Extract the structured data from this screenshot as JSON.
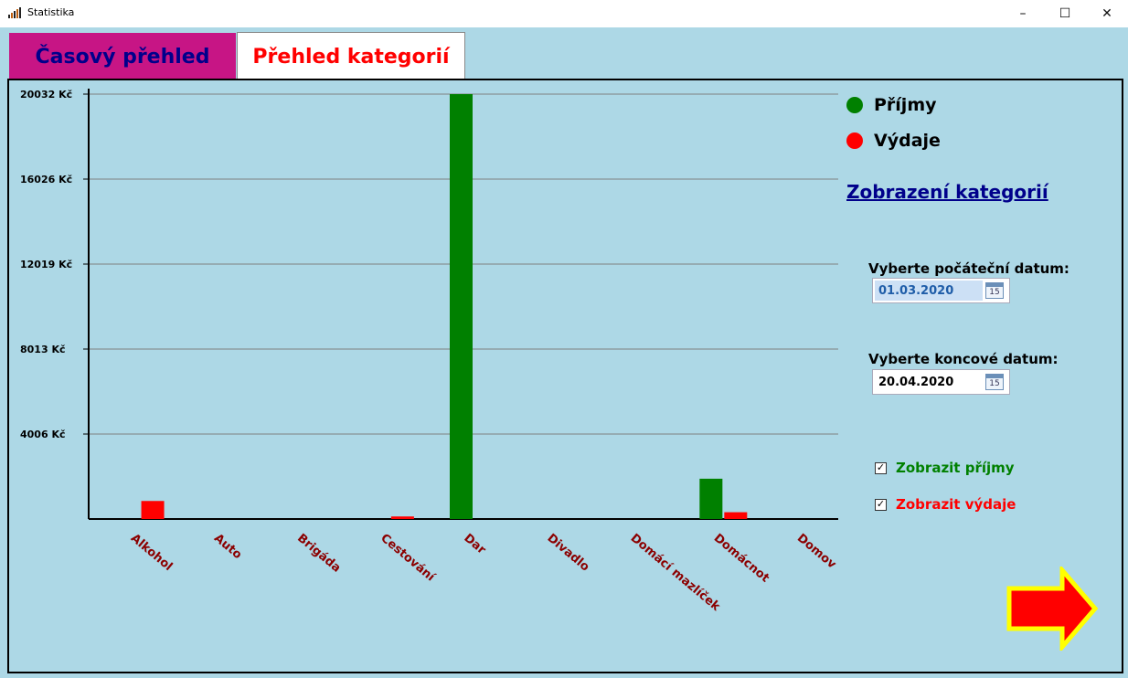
{
  "window": {
    "title": "Statistika",
    "controls": {
      "minimize": "–",
      "maximize": "☐",
      "close": "✕"
    }
  },
  "tabs": [
    {
      "label": "Časový přehled",
      "active": false
    },
    {
      "label": "Přehled kategorií",
      "active": true
    }
  ],
  "legend": [
    {
      "label": "Příjmy",
      "color": "#008000"
    },
    {
      "label": "Výdaje",
      "color": "#ff0000"
    }
  ],
  "category_link": "Zobrazení kategorií",
  "start_date": {
    "label": "Vyberte počáteční datum:",
    "value": "01.03.2020",
    "calendar_glyph": "15"
  },
  "end_date": {
    "label": "Vyberte koncové datum:",
    "value": "20.04.2020",
    "calendar_glyph": "15"
  },
  "checkboxes": [
    {
      "label": "Zobrazit příjmy",
      "checked": true,
      "color": "#008000"
    },
    {
      "label": "Zobrazit výdaje",
      "checked": true,
      "color": "#ff0000"
    }
  ],
  "next_button_icon": "right-arrow-icon",
  "chart_data": {
    "type": "bar",
    "categories": [
      "Alkohol",
      "Auto",
      "Brigáda",
      "Cestování",
      "Dar",
      "Divadlo",
      "Domácí mazlíček",
      "Domácnot",
      "Domov"
    ],
    "series": [
      {
        "name": "Příjmy",
        "color": "#008000",
        "values": [
          0,
          0,
          0,
          0,
          20032,
          0,
          0,
          1900,
          0
        ]
      },
      {
        "name": "Výdaje",
        "color": "#ff0000",
        "values": [
          850,
          0,
          0,
          120,
          0,
          0,
          0,
          320,
          0
        ]
      }
    ],
    "yticks": [
      {
        "value": 4006,
        "label": "4006 Kč"
      },
      {
        "value": 8013,
        "label": "8013 Kč"
      },
      {
        "value": 12019,
        "label": "12019 Kč"
      },
      {
        "value": 16026,
        "label": "16026 Kč"
      },
      {
        "value": 20032,
        "label": "20032 Kč"
      }
    ],
    "ylim": [
      0,
      20032
    ],
    "grid": true
  }
}
